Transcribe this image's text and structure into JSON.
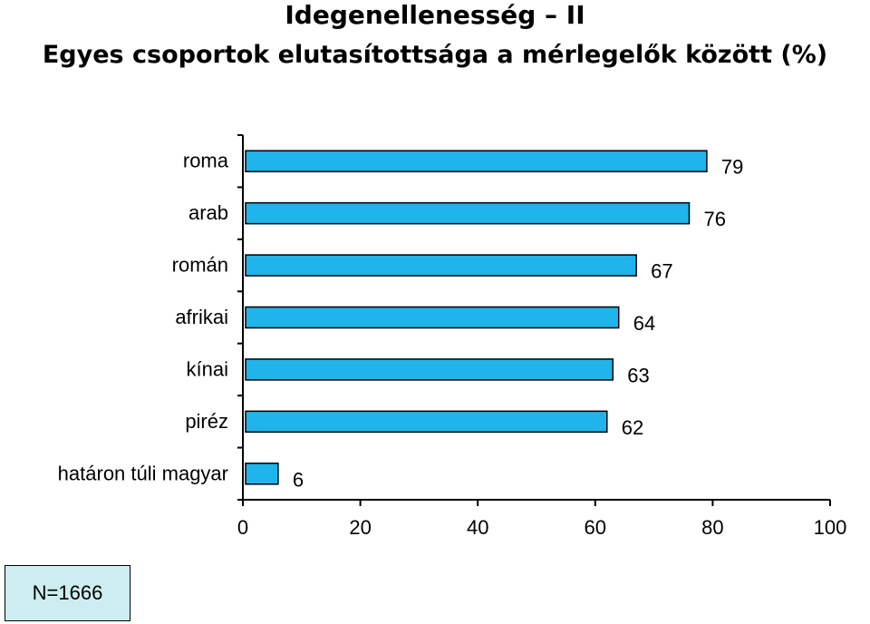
{
  "title_line1": "Idegenellenesség – II",
  "title_line2": "Egyes csoportok elutasítottsága a mérlegelők között (%)",
  "note": "N=1666",
  "bar_color": "#1fb4ea",
  "chart_data": {
    "type": "bar",
    "orientation": "horizontal",
    "categories": [
      "roma",
      "arab",
      "román",
      "afrikai",
      "kínai",
      "piréz",
      "határon túli magyar"
    ],
    "values": [
      79,
      76,
      67,
      64,
      63,
      62,
      6
    ],
    "title": "Idegenellenesség – II",
    "subtitle": "Egyes csoportok elutasítottsága a mérlegelők között (%)",
    "xlabel": "",
    "ylabel": "",
    "xlim": [
      0,
      100
    ],
    "xticks": [
      0,
      20,
      40,
      60,
      80,
      100
    ],
    "grid": false,
    "data_labels": true
  }
}
